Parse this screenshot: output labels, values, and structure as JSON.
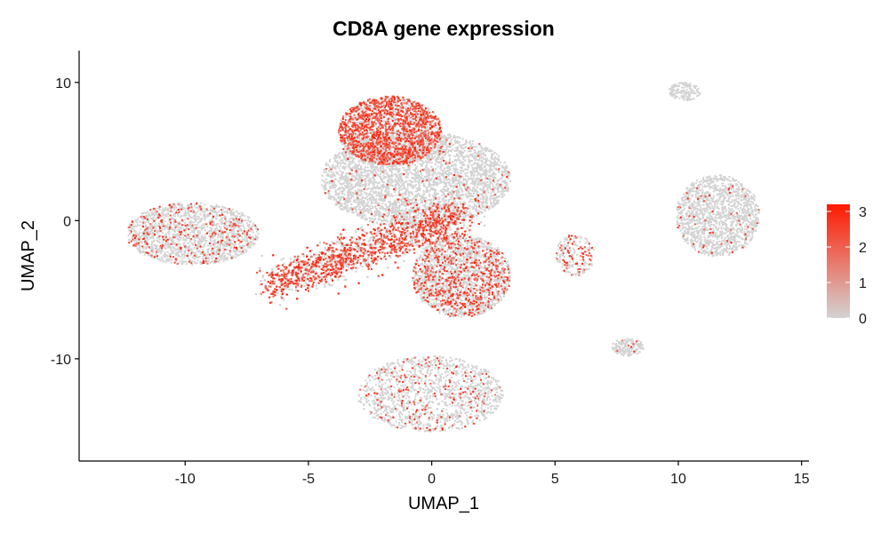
{
  "chart_data": {
    "type": "scatter",
    "title": "CD8A gene expression",
    "xlabel": "UMAP_1",
    "ylabel": "UMAP_2",
    "xlim": [
      -14.3,
      15.3
    ],
    "ylim": [
      -17.4,
      12.3
    ],
    "x_ticks": [
      -10,
      -5,
      0,
      5,
      10,
      15
    ],
    "y_ticks": [
      -10,
      0,
      10
    ],
    "grid": false,
    "legend": {
      "placement": "right",
      "type": "colorbar",
      "range": [
        0,
        3.2
      ],
      "ticks": [
        0,
        1,
        2,
        3
      ],
      "color_low": "#d3d3d3",
      "color_high": "#ff1a00"
    },
    "regions": [
      {
        "name": "upper-central",
        "x": [
          -4.5,
          3.2
        ],
        "y": [
          -0.5,
          6.5
        ],
        "expression": "low"
      },
      {
        "name": "top-lobe",
        "x": [
          -3.8,
          0.4
        ],
        "y": [
          4.0,
          9.0
        ],
        "expression": "high"
      },
      {
        "name": "left-cluster",
        "x": [
          -12.4,
          -7.0
        ],
        "y": [
          -3.2,
          1.3
        ],
        "expression": "sparse"
      },
      {
        "name": "diagonal-band",
        "x": [
          -6.5,
          1.2
        ],
        "y": [
          -5.2,
          1.0
        ],
        "expression": "high"
      },
      {
        "name": "lower-middle",
        "x": [
          -0.8,
          3.2
        ],
        "y": [
          -7.0,
          -1.0
        ],
        "expression": "mixed"
      },
      {
        "name": "right-cluster",
        "x": [
          9.9,
          13.3
        ],
        "y": [
          -2.6,
          3.3
        ],
        "expression": "low"
      },
      {
        "name": "top-right-small",
        "x": [
          9.6,
          10.9
        ],
        "y": [
          8.7,
          10.0
        ],
        "expression": "none"
      },
      {
        "name": "small-mid",
        "x": [
          5.0,
          6.6
        ],
        "y": [
          -4.0,
          -1.0
        ],
        "expression": "mixed"
      },
      {
        "name": "small-low",
        "x": [
          7.3,
          8.6
        ],
        "y": [
          -9.8,
          -8.5
        ],
        "expression": "low"
      },
      {
        "name": "bottom-cluster",
        "x": [
          -3.0,
          2.9
        ],
        "y": [
          -15.3,
          -9.8
        ],
        "expression": "sparse"
      }
    ]
  }
}
